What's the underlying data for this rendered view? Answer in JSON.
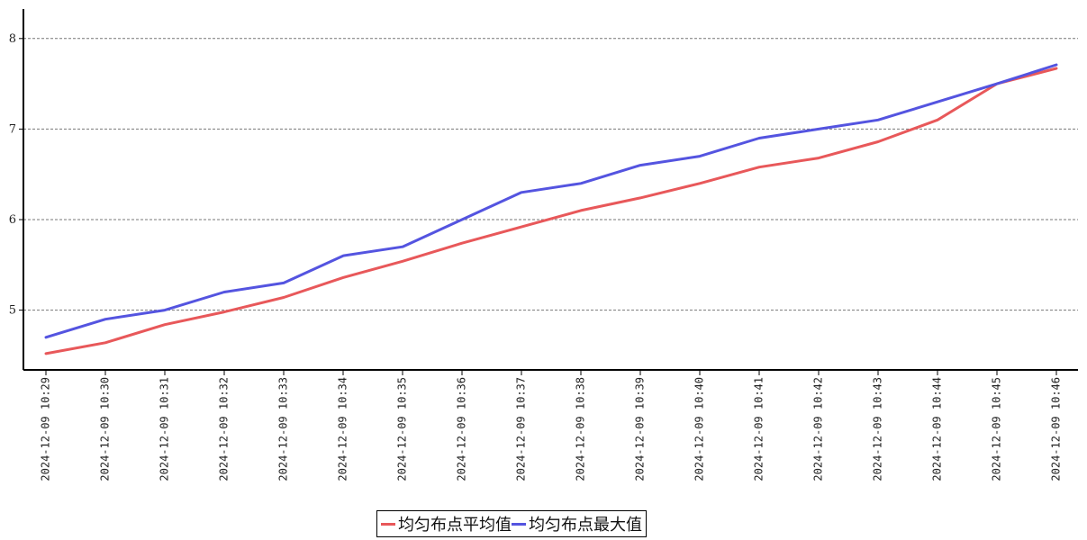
{
  "chart_data": {
    "type": "line",
    "x": [
      "2024-12-09 10:29",
      "2024-12-09 10:30",
      "2024-12-09 10:31",
      "2024-12-09 10:32",
      "2024-12-09 10:33",
      "2024-12-09 10:34",
      "2024-12-09 10:35",
      "2024-12-09 10:36",
      "2024-12-09 10:37",
      "2024-12-09 10:38",
      "2024-12-09 10:39",
      "2024-12-09 10:40",
      "2024-12-09 10:41",
      "2024-12-09 10:42",
      "2024-12-09 10:43",
      "2024-12-09 10:44",
      "2024-12-09 10:45",
      "2024-12-09 10:46"
    ],
    "series": [
      {
        "name": "均匀布点平均值",
        "color": "#e8585a",
        "values": [
          4.52,
          4.64,
          4.84,
          4.98,
          5.14,
          5.36,
          5.54,
          5.74,
          5.92,
          6.1,
          6.24,
          6.4,
          6.58,
          6.68,
          6.86,
          7.1,
          7.5,
          7.67
        ]
      },
      {
        "name": "均匀布点最大值",
        "color": "#5454e0",
        "values": [
          4.7,
          4.9,
          5.0,
          5.2,
          5.3,
          5.6,
          5.7,
          6.0,
          6.3,
          6.4,
          6.6,
          6.7,
          6.9,
          7.0,
          7.1,
          7.3,
          7.5,
          7.71
        ]
      }
    ],
    "yticks": [
      5,
      6,
      7,
      8
    ],
    "ylim": [
      4.34,
      8.34
    ],
    "grid": "horizontal dashed",
    "legend": "bottom-center",
    "title": "",
    "xlabel": "",
    "ylabel": ""
  }
}
